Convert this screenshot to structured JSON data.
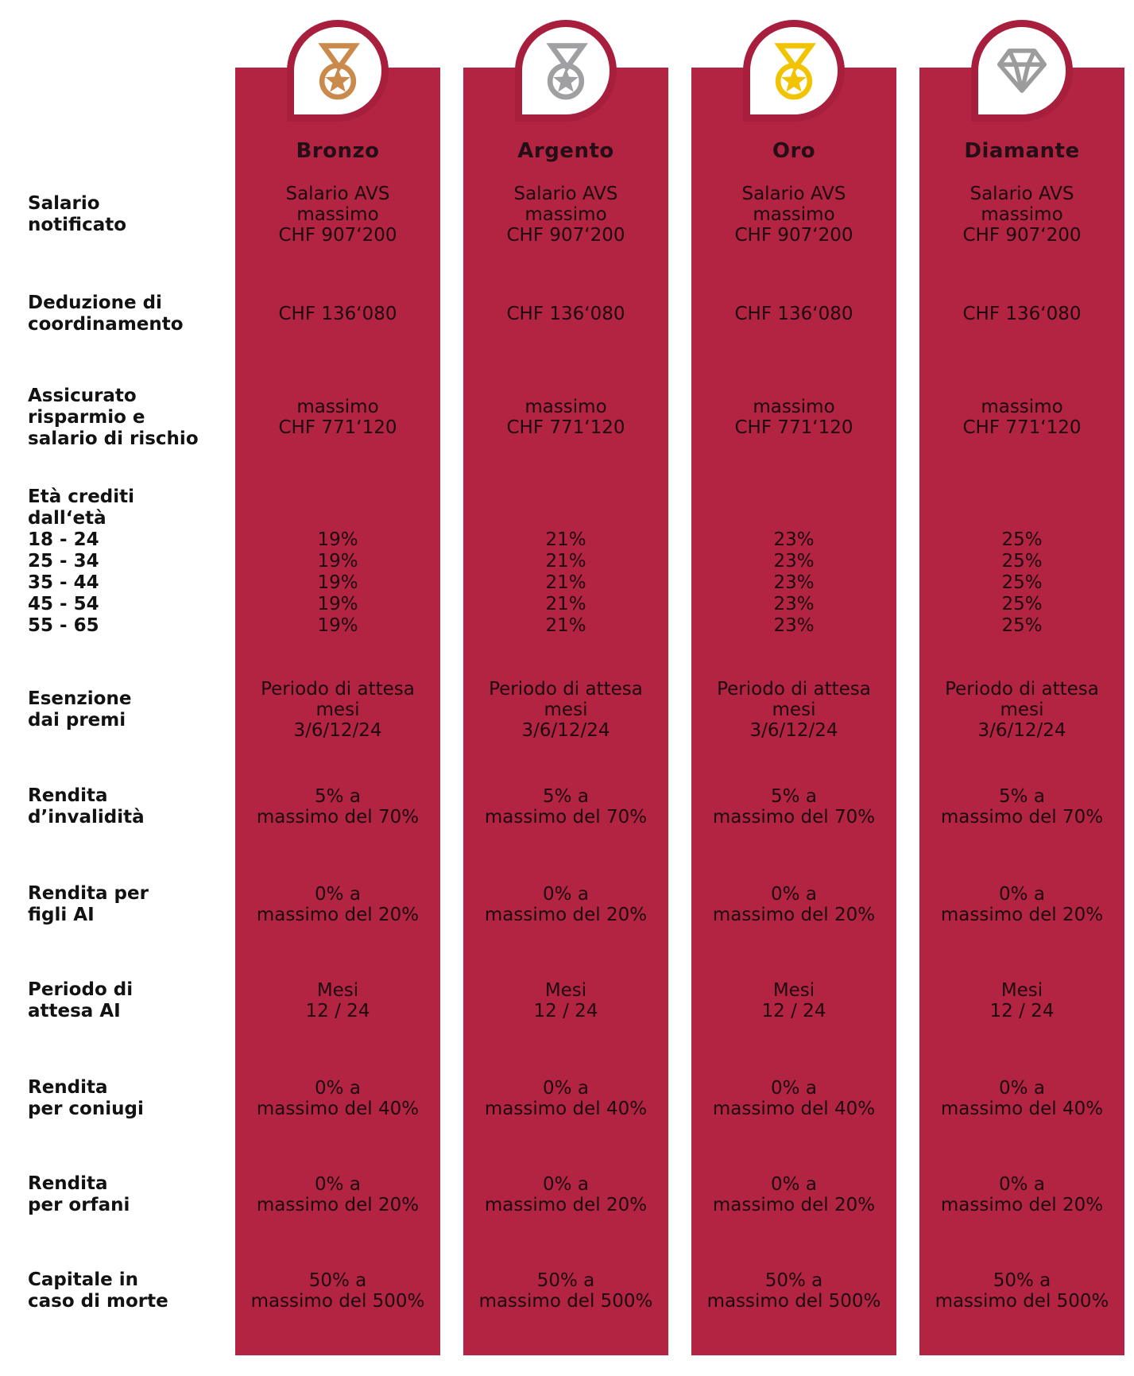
{
  "colors": {
    "card_red": "#B22442",
    "ring_red": "#A81F3D",
    "bronze": "#C98A4B",
    "silver": "#A0A0A2",
    "gold": "#F2C300",
    "diamond_gray": "#9C9C9C"
  },
  "columns": [
    {
      "title": "Bronzo",
      "icon": "bronze-medal-icon",
      "icon_type": "medal",
      "icon_color": "#C98A4B"
    },
    {
      "title": "Argento",
      "icon": "silver-medal-icon",
      "icon_type": "medal",
      "icon_color": "#A0A0A2"
    },
    {
      "title": "Oro",
      "icon": "gold-medal-icon",
      "icon_type": "medal",
      "icon_color": "#F2C300"
    },
    {
      "title": "Diamante",
      "icon": "diamond-icon",
      "icon_type": "diamond",
      "icon_color": "#9C9C9C"
    }
  ],
  "rows": [
    {
      "id": "salario-notificato",
      "label": [
        "Salario",
        "notificato"
      ],
      "values": {
        "type": "shared",
        "lines": [
          "Salario AVS",
          "massimo",
          "CHF 907‘200"
        ]
      }
    },
    {
      "id": "deduzione-coordinamento",
      "label": [
        "Deduzione di",
        "coordinamento"
      ],
      "values": {
        "type": "shared",
        "lines": [
          "CHF 136‘080"
        ]
      }
    },
    {
      "id": "assicurato-risparmio",
      "label": [
        "Assicurato",
        "risparmio e",
        "salario di rischio"
      ],
      "values": {
        "type": "shared",
        "lines": [
          "massimo",
          "CHF 771‘120"
        ]
      }
    },
    {
      "id": "eta-crediti",
      "label": [
        "Età crediti",
        "dall‘età",
        "18 - 24",
        "25 - 34",
        "35 - 44",
        "45 - 54",
        "55 - 65"
      ],
      "values": {
        "type": "per_column",
        "columns": [
          [
            "19%",
            "19%",
            "19%",
            "19%",
            "19%"
          ],
          [
            "21%",
            "21%",
            "21%",
            "21%",
            "21%"
          ],
          [
            "23%",
            "23%",
            "23%",
            "23%",
            "23%"
          ],
          [
            "25%",
            "25%",
            "25%",
            "25%",
            "25%"
          ]
        ]
      }
    },
    {
      "id": "esenzione-premi",
      "label": [
        "Esenzione",
        "dai premi"
      ],
      "values": {
        "type": "shared",
        "lines": [
          "Periodo di attesa",
          "mesi",
          "3/6/12/24"
        ]
      }
    },
    {
      "id": "rendita-invalidita",
      "label": [
        "Rendita",
        "d’invalidità"
      ],
      "values": {
        "type": "shared",
        "lines": [
          "5% a",
          "massimo del 70%"
        ]
      }
    },
    {
      "id": "rendita-figli-ai",
      "label": [
        "Rendita per",
        "figli AI"
      ],
      "values": {
        "type": "shared",
        "lines": [
          "0% a",
          "massimo del 20%"
        ]
      }
    },
    {
      "id": "periodo-attesa-ai",
      "label": [
        "Periodo di",
        "attesa AI"
      ],
      "values": {
        "type": "shared",
        "lines": [
          "Mesi",
          "12 / 24"
        ]
      }
    },
    {
      "id": "rendita-coniugi",
      "label": [
        "Rendita",
        "per coniugi"
      ],
      "values": {
        "type": "shared",
        "lines": [
          "0% a",
          "massimo del 40%"
        ]
      }
    },
    {
      "id": "rendita-orfani",
      "label": [
        "Rendita",
        "per orfani"
      ],
      "values": {
        "type": "shared",
        "lines": [
          "0% a",
          "massimo del 20%"
        ]
      }
    },
    {
      "id": "capitale-morte",
      "label": [
        "Capitale in",
        "caso di morte"
      ],
      "values": {
        "type": "shared",
        "lines": [
          "50% a",
          "massimo del 500%"
        ]
      }
    }
  ],
  "chart_data": {
    "type": "table",
    "title": "",
    "columns": [
      "Bronzo",
      "Argento",
      "Oro",
      "Diamante"
    ],
    "row_headers": [
      "Salario notificato",
      "Deduzione di coordinamento",
      "Assicurato risparmio e salario di rischio",
      "Età crediti dall‘età 18-24/25-34/35-44/45-54/55-65",
      "Esenzione dai premi",
      "Rendita d’invalidità",
      "Rendita per figli AI",
      "Periodo di attesa AI",
      "Rendita per coniugi",
      "Rendita per orfani",
      "Capitale in caso di morte"
    ],
    "cells": [
      [
        "Salario AVS massimo CHF 907‘200",
        "Salario AVS massimo CHF 907‘200",
        "Salario AVS massimo CHF 907‘200",
        "Salario AVS massimo CHF 907‘200"
      ],
      [
        "CHF 136‘080",
        "CHF 136‘080",
        "CHF 136‘080",
        "CHF 136‘080"
      ],
      [
        "massimo CHF 771‘120",
        "massimo CHF 771‘120",
        "massimo CHF 771‘120",
        "massimo CHF 771‘120"
      ],
      [
        "19% / 19% / 19% / 19% / 19%",
        "21% / 21% / 21% / 21% / 21%",
        "23% / 23% / 23% / 23% / 23%",
        "25% / 25% / 25% / 25% / 25%"
      ],
      [
        "Periodo di attesa mesi 3/6/12/24",
        "Periodo di attesa mesi 3/6/12/24",
        "Periodo di attesa mesi 3/6/12/24",
        "Periodo di attesa mesi 3/6/12/24"
      ],
      [
        "5% a massimo del 70%",
        "5% a massimo del 70%",
        "5% a massimo del 70%",
        "5% a massimo del 70%"
      ],
      [
        "0% a massimo del 20%",
        "0% a massimo del 20%",
        "0% a massimo del 20%",
        "0% a massimo del 20%"
      ],
      [
        "Mesi 12 / 24",
        "Mesi 12 / 24",
        "Mesi 12 / 24",
        "Mesi 12 / 24"
      ],
      [
        "0% a massimo del 40%",
        "0% a massimo del 40%",
        "0% a massimo del 40%",
        "0% a massimo del 40%"
      ],
      [
        "0% a massimo del 20%",
        "0% a massimo del 20%",
        "0% a massimo del 20%",
        "0% a massimo del 20%"
      ],
      [
        "50% a massimo del 500%",
        "50% a massimo del 500%",
        "50% a massimo del 500%",
        "50% a massimo del 500%"
      ]
    ]
  }
}
